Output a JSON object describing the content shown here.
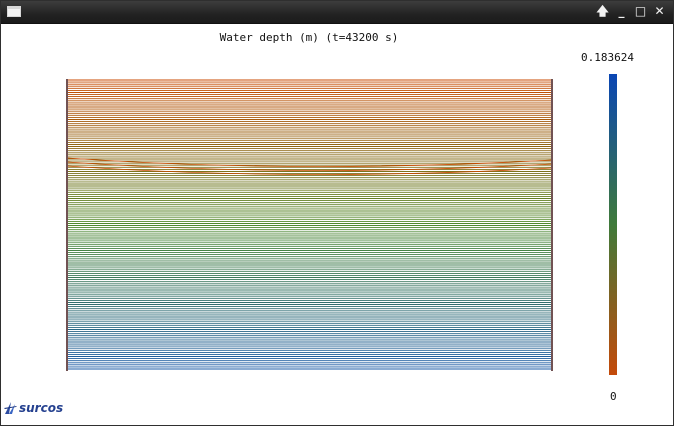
{
  "window": {
    "controls": {
      "pin": "🡅",
      "minimize": "_",
      "maximize": "□",
      "close": "✕"
    }
  },
  "plot": {
    "title": "Water depth (m) (t=43200 s)",
    "colorbar": {
      "max_label": "0.183624",
      "min_label": "0",
      "max_color": "#0a46b4",
      "mid_color": "#3f7a3a",
      "min_color": "#c44a0a"
    },
    "line_count": 140,
    "line_color_top": "#c84a00",
    "line_color_mid": "#4f8a2e",
    "line_color_bottom": "#1a5aa6",
    "wave_band_color": "#c84a00"
  },
  "logo": {
    "text": "surcos"
  }
}
